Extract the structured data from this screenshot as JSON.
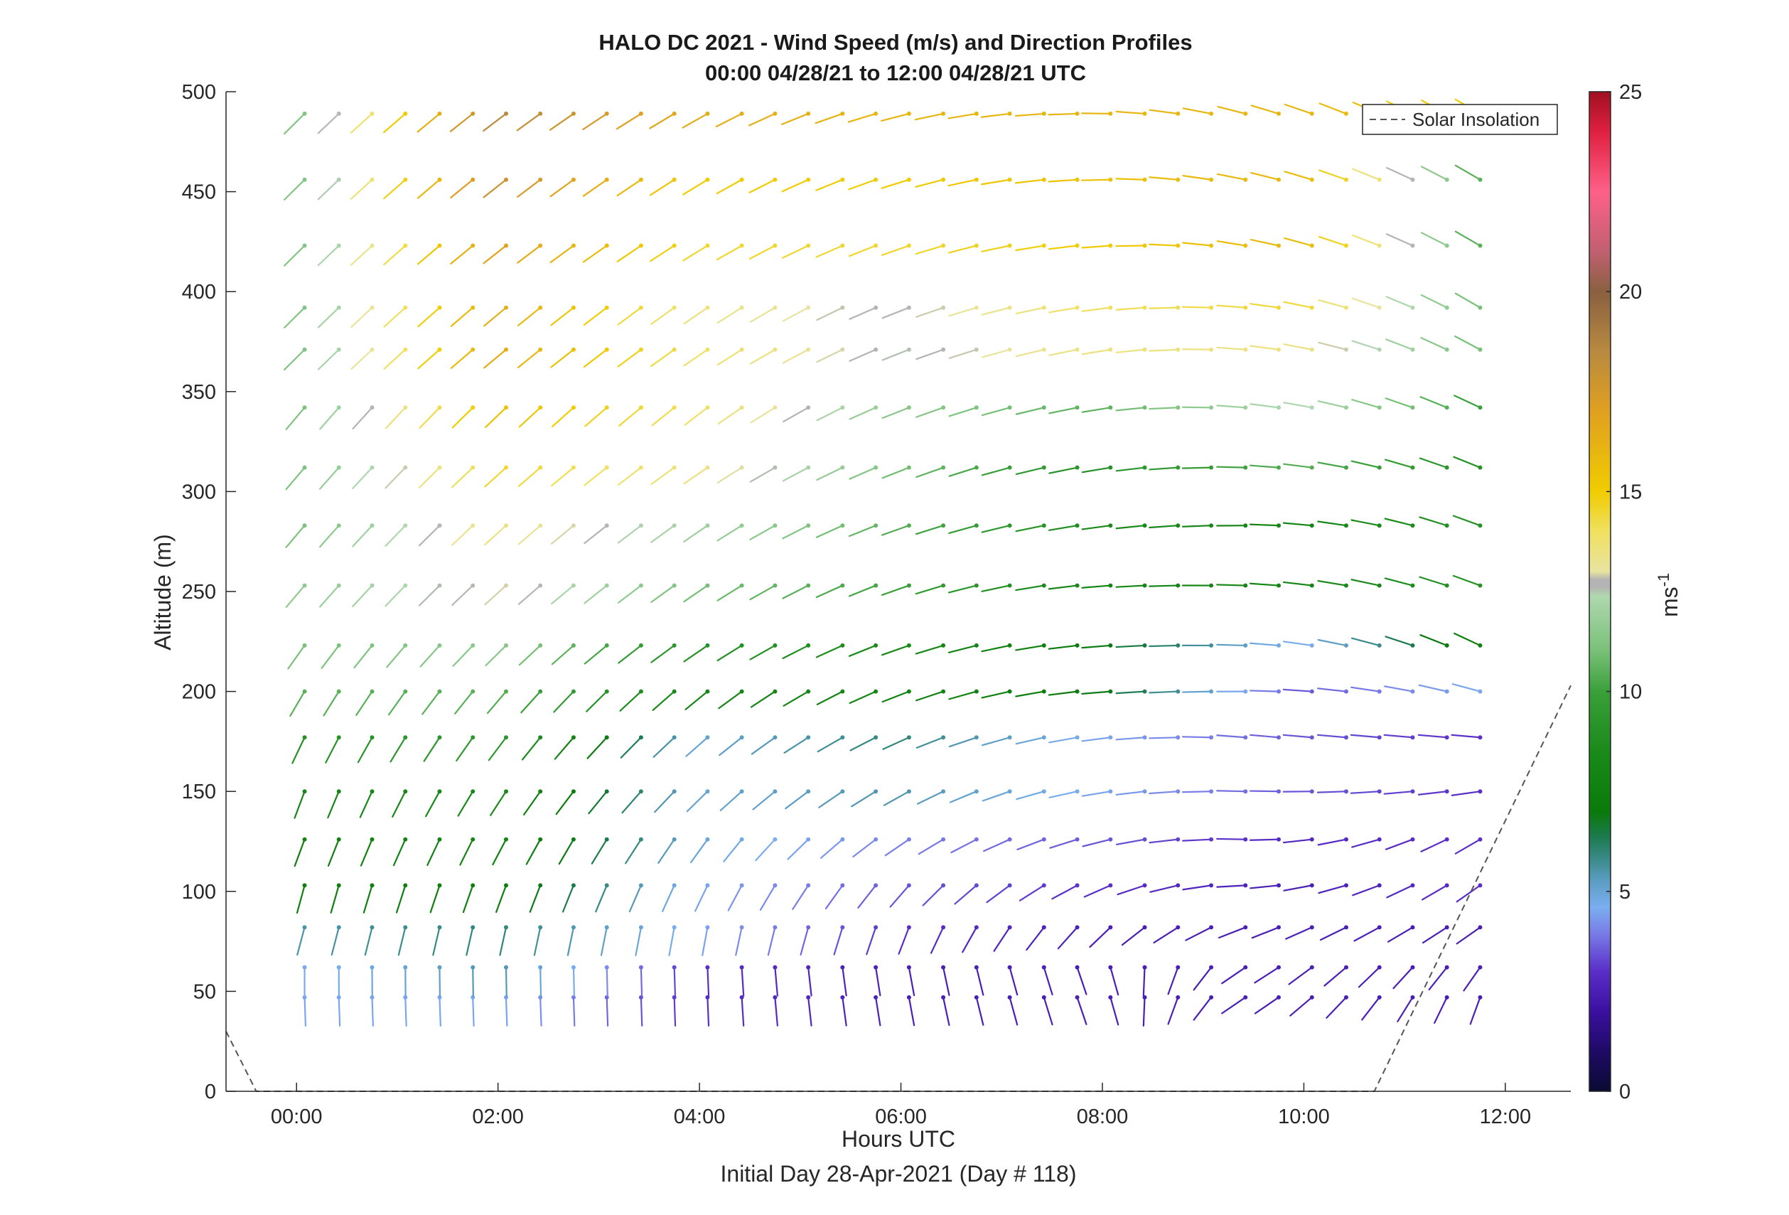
{
  "chart_data": {
    "type": "quiver",
    "title": "HALO DC 2021 - Wind Speed (m/s) and Direction Profiles",
    "subtitle": "00:00 04/28/21 to 12:00 04/28/21  UTC",
    "xlabel": "Hours UTC",
    "xlabel2": "Initial Day 28-Apr-2021 (Day # 118)",
    "ylabel": "Altitude (m)",
    "xlim": [
      -0.7,
      12.65
    ],
    "ylim": [
      0,
      500
    ],
    "xticks": [
      0,
      2,
      4,
      6,
      8,
      10,
      12
    ],
    "xtick_labels": [
      "00:00",
      "02:00",
      "04:00",
      "06:00",
      "08:00",
      "10:00",
      "12:00"
    ],
    "yticks": [
      0,
      50,
      100,
      150,
      200,
      250,
      300,
      350,
      400,
      450,
      500
    ],
    "ytick_labels": [
      "0",
      "50",
      "100",
      "150",
      "200",
      "250",
      "300",
      "350",
      "400",
      "450",
      "500"
    ],
    "colorbar": {
      "label": "ms",
      "label_exponent": "-1",
      "range": [
        0,
        25
      ],
      "ticks": [
        0,
        5,
        10,
        15,
        20,
        25
      ],
      "tick_labels": [
        "0",
        "5",
        "10",
        "15",
        "20",
        "25"
      ],
      "colormap": [
        [
          0,
          "#0a0a33"
        ],
        [
          1,
          "#1f0a66"
        ],
        [
          2,
          "#3a10a0"
        ],
        [
          3,
          "#5a2ec8"
        ],
        [
          4,
          "#7a80e8"
        ],
        [
          4.6,
          "#7aaef0"
        ],
        [
          5.3,
          "#5a9cc0"
        ],
        [
          5.8,
          "#3a8a8a"
        ],
        [
          6.4,
          "#1a7a4a"
        ],
        [
          7,
          "#0a7a0a"
        ],
        [
          8.5,
          "#1a8a1a"
        ],
        [
          10,
          "#3aa03a"
        ],
        [
          11,
          "#78c078"
        ],
        [
          12.4,
          "#b0d8b0"
        ],
        [
          12.6,
          "#b4b4b4"
        ],
        [
          12.8,
          "#b4b4b4"
        ],
        [
          13,
          "#e8e4a0"
        ],
        [
          14,
          "#f0e060"
        ],
        [
          15,
          "#f0cc00"
        ],
        [
          17,
          "#e0a020"
        ],
        [
          18.5,
          "#b88a40"
        ],
        [
          20,
          "#8a6040"
        ],
        [
          21,
          "#c06070"
        ],
        [
          22.5,
          "#ff6088"
        ],
        [
          24,
          "#e02040"
        ],
        [
          25,
          "#a01020"
        ]
      ]
    },
    "legend": {
      "entries": [
        "Solar Insolation"
      ],
      "location": "top-right"
    },
    "solar_insolation": {
      "style": "dashed",
      "x": [
        -0.7,
        -0.4,
        10.7,
        12.65
      ],
      "y": [
        30,
        0,
        0,
        203
      ]
    },
    "wind": {
      "times_hours": [
        0.08,
        0.42,
        0.75,
        1.08,
        1.42,
        1.75,
        2.08,
        2.42,
        2.75,
        3.08,
        3.42,
        3.75,
        4.08,
        4.42,
        4.75,
        5.08,
        5.42,
        5.75,
        6.08,
        6.42,
        6.75,
        7.08,
        7.42,
        7.75,
        8.08,
        8.42,
        8.75,
        9.08,
        9.42,
        9.75,
        10.08,
        10.42,
        10.75,
        11.08,
        11.42,
        11.75
      ],
      "altitudes_m": [
        47,
        62,
        82,
        103,
        126,
        150,
        177,
        200,
        223,
        253,
        283,
        312,
        342,
        371,
        392,
        423,
        456,
        489
      ],
      "direction_profile_deg": {
        "altitudes_m": [
          47,
          62,
          82,
          103,
          126,
          150,
          177,
          200,
          223,
          253,
          283,
          312,
          342,
          371,
          392,
          423,
          456,
          489
        ],
        "times_hours": [
          0,
          4,
          6,
          8,
          9.5,
          11.75
        ],
        "dir": [
          [
            178,
            178,
            170,
            160,
            240,
            200
          ],
          [
            180,
            178,
            170,
            160,
            240,
            215
          ],
          [
            195,
            190,
            200,
            225,
            250,
            235
          ],
          [
            195,
            205,
            220,
            245,
            268,
            235
          ],
          [
            200,
            215,
            235,
            255,
            272,
            240
          ],
          [
            200,
            225,
            240,
            260,
            272,
            262
          ],
          [
            205,
            228,
            245,
            262,
            275,
            275
          ],
          [
            210,
            230,
            248,
            265,
            270,
            285
          ],
          [
            215,
            235,
            250,
            265,
            272,
            295
          ],
          [
            220,
            235,
            250,
            265,
            272,
            290
          ],
          [
            220,
            235,
            250,
            262,
            270,
            290
          ],
          [
            220,
            235,
            248,
            260,
            272,
            292
          ],
          [
            220,
            232,
            248,
            260,
            275,
            295
          ],
          [
            225,
            235,
            248,
            260,
            275,
            298
          ],
          [
            225,
            235,
            248,
            262,
            275,
            300
          ],
          [
            225,
            238,
            250,
            265,
            280,
            300
          ],
          [
            225,
            238,
            252,
            268,
            282,
            300
          ],
          [
            225,
            240,
            255,
            270,
            285,
            300
          ]
        ]
      },
      "speed_profile_ms": {
        "altitudes_m": [
          47,
          62,
          82,
          103,
          126,
          150,
          177,
          200,
          223,
          253,
          283,
          312,
          342,
          371,
          392,
          423,
          456,
          489
        ],
        "times_hours": [
          0,
          2,
          4,
          6,
          8,
          10,
          11.75
        ],
        "speed": [
          [
            4.5,
            4.5,
            3.0,
            2.5,
            2.5,
            2.5,
            2.5
          ],
          [
            4.5,
            5.5,
            3.0,
            2.5,
            2.5,
            2.5,
            2.5
          ],
          [
            5.5,
            6.0,
            4.5,
            3.0,
            2.5,
            2.5,
            2.5
          ],
          [
            7.5,
            7.5,
            4.5,
            3.5,
            3.0,
            2.5,
            3.0
          ],
          [
            7.5,
            8.0,
            5.0,
            4.0,
            3.5,
            2.8,
            3.0
          ],
          [
            8.0,
            8.5,
            5.0,
            5.5,
            4.5,
            3.5,
            3.0
          ],
          [
            9.0,
            9.5,
            5.0,
            6.0,
            4.5,
            3.5,
            3.0
          ],
          [
            10.5,
            10.5,
            8.0,
            8.0,
            7.0,
            3.5,
            4.5
          ],
          [
            11.0,
            11.5,
            9.0,
            8.5,
            7.0,
            4.5,
            7.5
          ],
          [
            11.5,
            13.0,
            11.0,
            10.0,
            8.0,
            8.0,
            9.0
          ],
          [
            11.0,
            13.5,
            12.0,
            10.5,
            8.5,
            8.0,
            9.0
          ],
          [
            11.0,
            14.5,
            13.5,
            11.0,
            9.0,
            10.5,
            9.0
          ],
          [
            11.0,
            15.5,
            14.0,
            11.5,
            10.5,
            12.5,
            10.0
          ],
          [
            11.0,
            16.5,
            14.0,
            12.5,
            13.5,
            13.5,
            11.0
          ],
          [
            11.0,
            16.5,
            13.5,
            12.6,
            14.0,
            14.5,
            11.0
          ],
          [
            11.0,
            17.0,
            14.5,
            14.5,
            15.0,
            16.0,
            10.5
          ],
          [
            11.0,
            18.0,
            15.0,
            15.0,
            15.5,
            16.0,
            10.5
          ],
          [
            11.0,
            18.5,
            16.5,
            16.0,
            16.0,
            16.0,
            15.0
          ]
        ]
      }
    }
  }
}
